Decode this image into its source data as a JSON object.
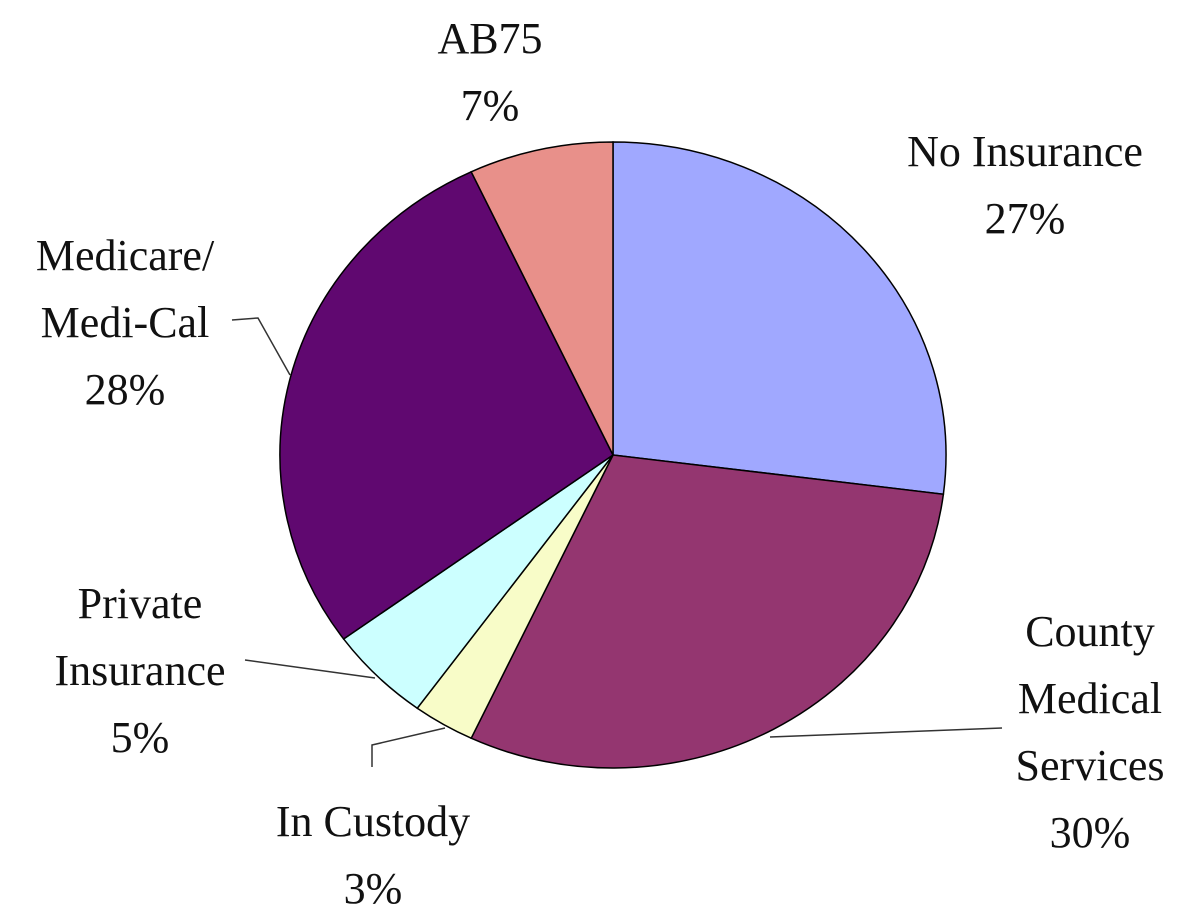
{
  "chart_data": {
    "type": "pie",
    "categories": [
      "No Insurance",
      "County\nMedical\nServices",
      "In Custody",
      "Private\nInsurance",
      "Medicare/\nMedi-Cal",
      "AB75"
    ],
    "values": [
      27,
      30,
      3,
      5,
      28,
      7
    ],
    "value_labels": [
      "27%",
      "30%",
      "3%",
      "5%",
      "28%",
      "7%"
    ],
    "colors": [
      "#a0a8ff",
      "#943670",
      "#f8fcc8",
      "#ccffff",
      "#600870",
      "#e8908a"
    ]
  }
}
